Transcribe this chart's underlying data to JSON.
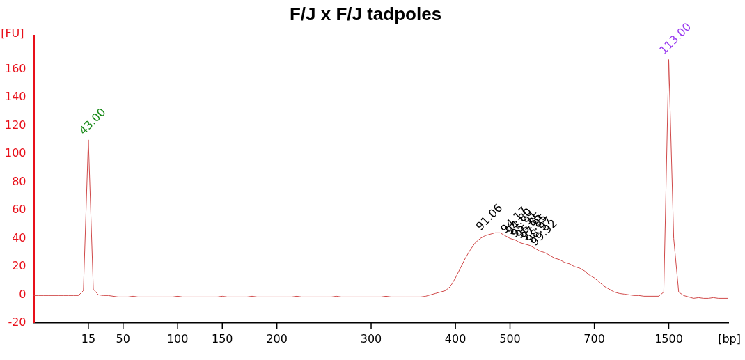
{
  "chart_data": {
    "type": "line",
    "title": "F/J x F/J tadpoles",
    "xlabel": "[bp]",
    "ylabel": "[FU]",
    "marker": "none",
    "categories": [
      null,
      null,
      null,
      null,
      null,
      null,
      null,
      null,
      null,
      null,
      null,
      "15",
      null,
      null,
      null,
      null,
      null,
      null,
      "50",
      null,
      null,
      null,
      null,
      null,
      null,
      null,
      null,
      null,
      null,
      "100",
      null,
      null,
      null,
      null,
      null,
      null,
      null,
      null,
      "150",
      null,
      null,
      null,
      null,
      null,
      null,
      null,
      null,
      null,
      null,
      "200",
      null,
      null,
      null,
      null,
      null,
      null,
      null,
      null,
      null,
      null,
      null,
      null,
      null,
      null,
      null,
      null,
      null,
      null,
      "300",
      null,
      null,
      null,
      null,
      null,
      null,
      null,
      null,
      null,
      null,
      null,
      null,
      null,
      null,
      null,
      null,
      "400",
      null,
      null,
      null,
      null,
      null,
      null,
      null,
      null,
      null,
      null,
      "500",
      null,
      null,
      null,
      null,
      null,
      null,
      null,
      null,
      null,
      null,
      null,
      null,
      null,
      null,
      null,
      null,
      "700",
      null,
      null,
      null,
      null,
      null,
      null,
      null,
      null,
      null,
      null,
      null,
      null,
      null,
      null,
      "1500",
      null,
      null,
      null,
      null,
      null,
      null,
      null,
      null,
      null,
      null,
      null,
      null
    ],
    "series": [
      {
        "color": "#d04a4a",
        "values": [
          -0.5,
          -0.5,
          -0.5,
          -0.5,
          -0.5,
          -0.5,
          -0.5,
          -0.5,
          -0.5,
          -0.5,
          3,
          110,
          4,
          0,
          -0.5,
          -0.5,
          -1,
          -1.5,
          -1.5,
          -1.5,
          -1,
          -1.5,
          -1.5,
          -1.5,
          -1.5,
          -1.5,
          -1.5,
          -1.5,
          -1.5,
          -1,
          -1.5,
          -1.5,
          -1.5,
          -1.5,
          -1.5,
          -1.5,
          -1.5,
          -1.5,
          -1,
          -1.5,
          -1.5,
          -1.5,
          -1.5,
          -1.5,
          -1,
          -1.5,
          -1.5,
          -1.5,
          -1.5,
          -1.5,
          -1.5,
          -1.5,
          -1.5,
          -1,
          -1.5,
          -1.5,
          -1.5,
          -1.5,
          -1.5,
          -1.5,
          -1.5,
          -1,
          -1.5,
          -1.5,
          -1.5,
          -1.5,
          -1.5,
          -1.5,
          -1.5,
          -1.5,
          -1.5,
          -1,
          -1.5,
          -1.5,
          -1.5,
          -1.5,
          -1.5,
          -1.5,
          -1.5,
          -1,
          0,
          1,
          2,
          3,
          6,
          12,
          19,
          26,
          32,
          37,
          40,
          42,
          43,
          44,
          44,
          42,
          40,
          39,
          37,
          36,
          35,
          33,
          31,
          30,
          28,
          26,
          25,
          23,
          22,
          20,
          19,
          17,
          14,
          12,
          9,
          6,
          4,
          2,
          1,
          0.5,
          0,
          -0.5,
          -0.5,
          -1,
          -1,
          -1,
          -1,
          2,
          167,
          40,
          2,
          -0.5,
          -1.5,
          -2.5,
          -2,
          -2.5,
          -2.5,
          -2,
          -2.5,
          -2.5,
          -2.5
        ]
      }
    ],
    "ylim": [
      -20,
      184
    ],
    "yticks": [
      -20,
      0,
      20,
      40,
      60,
      80,
      100,
      120,
      140,
      160
    ],
    "annotations": [
      "43.00",
      "91.06",
      "94.17",
      "94.80",
      "95.91",
      "96.85",
      "97.85",
      "98.97",
      "99.92",
      "113.00"
    ]
  }
}
